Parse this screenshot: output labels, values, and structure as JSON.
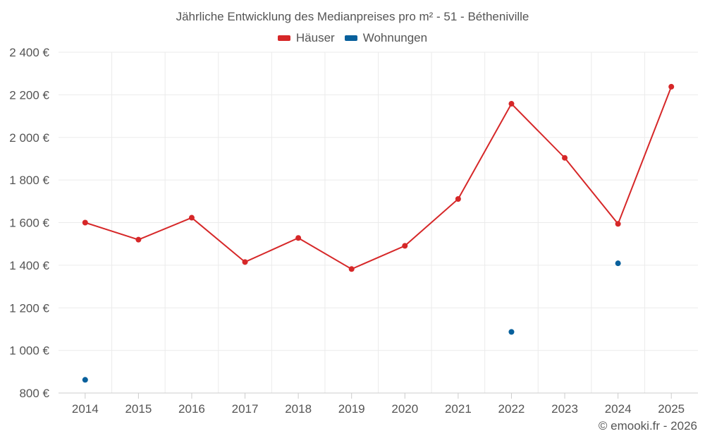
{
  "chart_data": {
    "type": "line",
    "title": "Jährliche Entwicklung des Medianpreises pro m² - 51 - Bétheniville",
    "categories": [
      "2014",
      "2015",
      "2016",
      "2017",
      "2018",
      "2019",
      "2020",
      "2021",
      "2022",
      "2023",
      "2024",
      "2025"
    ],
    "series": [
      {
        "name": "Häuser",
        "color": "#d62728",
        "values": [
          1600,
          1520,
          1623,
          1415,
          1528,
          1382,
          1491,
          1711,
          2158,
          1904,
          1594,
          2238
        ]
      },
      {
        "name": "Wohnungen",
        "color": "#08609c",
        "values": [
          862,
          null,
          null,
          null,
          null,
          null,
          null,
          null,
          1087,
          null,
          1409,
          null
        ]
      }
    ],
    "ylim": [
      800,
      2400
    ],
    "yticks": [
      800,
      1000,
      1200,
      1400,
      1600,
      1800,
      2000,
      2200,
      2400
    ],
    "ytick_labels": [
      "800 €",
      "1 000 €",
      "1 200 €",
      "1 400 €",
      "1 600 €",
      "1 800 €",
      "2 000 €",
      "2 200 €",
      "2 400 €"
    ],
    "xlabel": "",
    "ylabel": "",
    "grid": true,
    "legend_position": "top-center"
  },
  "credit": "© emooki.fr - 2026"
}
